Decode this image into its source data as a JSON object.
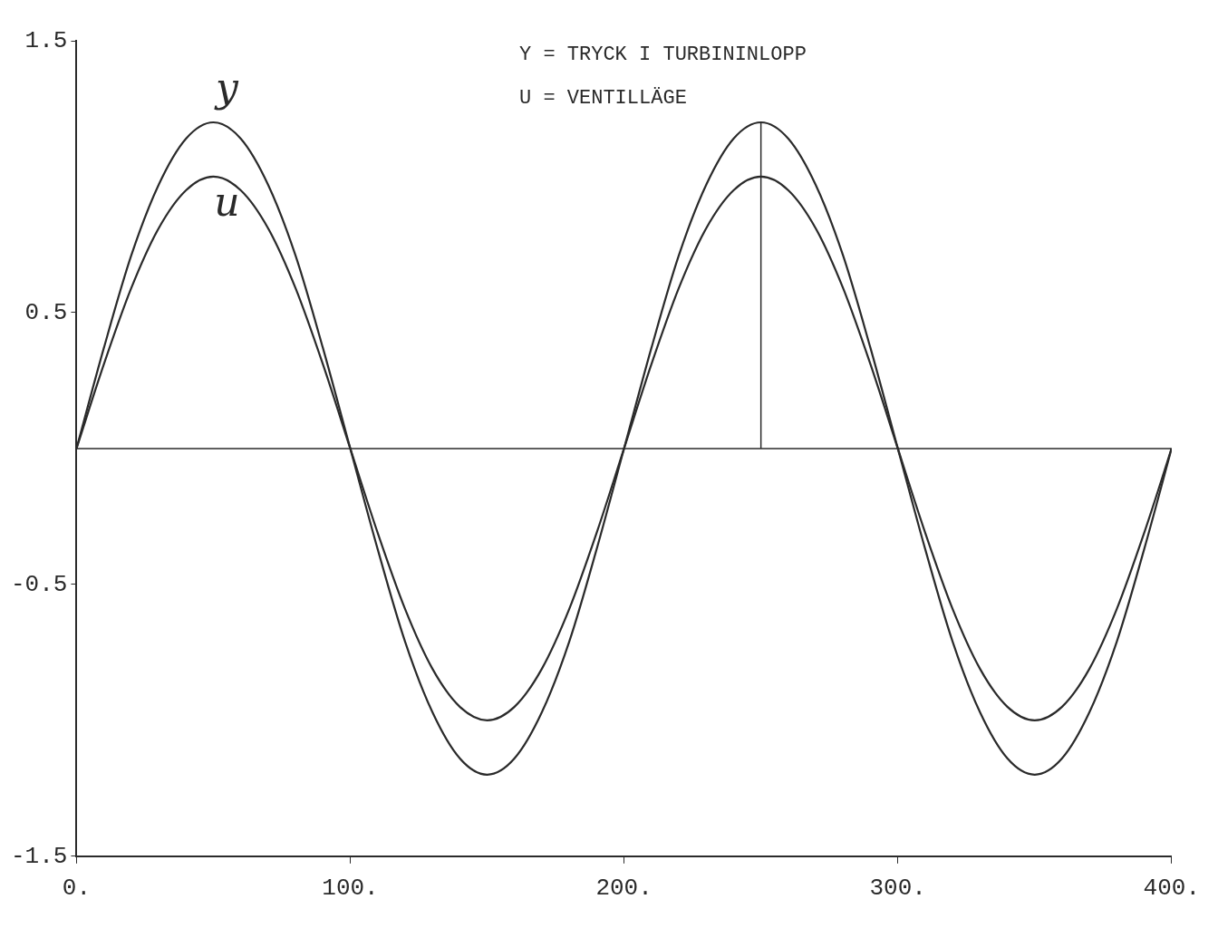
{
  "chart_data": {
    "type": "line",
    "annotations": [
      "Y = TRYCK I TURBININLOPP",
      "U = VENTILLÄGE"
    ],
    "x": [
      0,
      10,
      20,
      30,
      40,
      50,
      60,
      70,
      80,
      90,
      100,
      110,
      120,
      130,
      140,
      150,
      160,
      170,
      180,
      190,
      200,
      210,
      220,
      230,
      240,
      250,
      260,
      270,
      280,
      290,
      300,
      310,
      320,
      330,
      340,
      350,
      360,
      370,
      380,
      390,
      400
    ],
    "series": [
      {
        "name": "y",
        "color": "#2a2a2a",
        "values": [
          0,
          0.37,
          0.71,
          0.97,
          1.14,
          1.2,
          1.14,
          0.97,
          0.71,
          0.37,
          0,
          -0.37,
          -0.71,
          -0.97,
          -1.14,
          -1.2,
          -1.14,
          -0.97,
          -0.71,
          -0.37,
          0,
          0.37,
          0.71,
          0.97,
          1.14,
          1.2,
          1.14,
          0.97,
          0.71,
          0.37,
          0,
          -0.37,
          -0.71,
          -0.97,
          -1.14,
          -1.2,
          -1.14,
          -0.97,
          -0.71,
          -0.37,
          0
        ]
      },
      {
        "name": "u",
        "color": "#2a2a2a",
        "values": [
          0,
          0.31,
          0.59,
          0.81,
          0.95,
          1.0,
          0.95,
          0.81,
          0.59,
          0.31,
          0,
          -0.31,
          -0.59,
          -0.81,
          -0.95,
          -1.0,
          -0.95,
          -0.81,
          -0.59,
          -0.31,
          0,
          0.31,
          0.59,
          0.81,
          0.95,
          1.0,
          0.95,
          0.81,
          0.59,
          0.31,
          0,
          -0.31,
          -0.59,
          -0.81,
          -0.95,
          -1.0,
          -0.95,
          -0.81,
          -0.59,
          -0.31,
          0
        ]
      }
    ],
    "xlim": [
      0,
      400
    ],
    "xticks": [
      {
        "value": 0,
        "label": "0."
      },
      {
        "value": 100,
        "label": "100."
      },
      {
        "value": 200,
        "label": "200."
      },
      {
        "value": 300,
        "label": "300."
      },
      {
        "value": 400,
        "label": "400."
      }
    ],
    "ylim": [
      -1.5,
      1.5
    ],
    "yticks": [
      -1.5,
      -0.5,
      0.5,
      1.5
    ],
    "ref_lines": [
      {
        "axis": "y",
        "value": 0
      },
      {
        "axis": "x",
        "value": 250
      }
    ],
    "grid": false,
    "legend": false,
    "marker": "none",
    "line_style": "solid"
  }
}
